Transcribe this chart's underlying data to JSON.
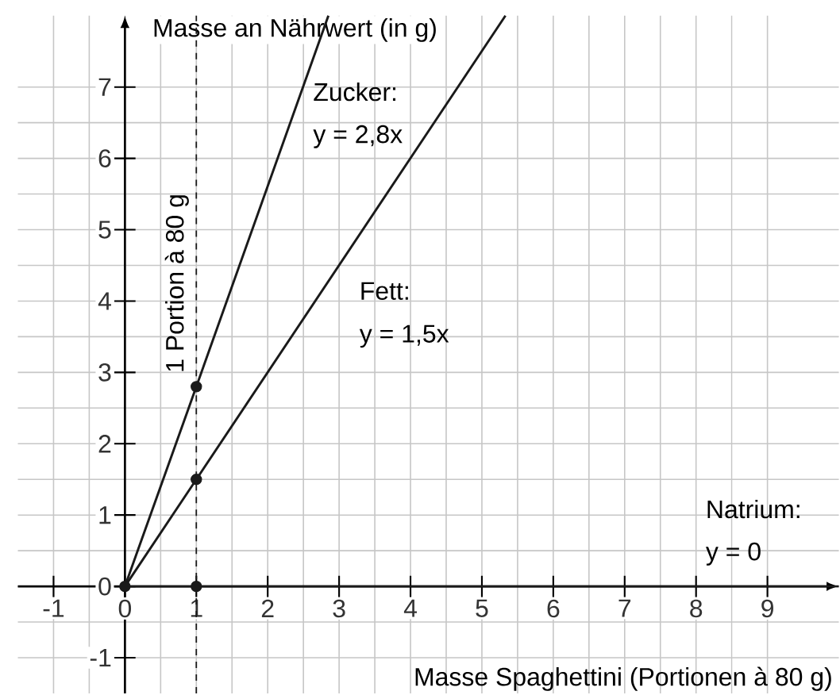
{
  "chart_data": {
    "type": "line",
    "xlabel": "Masse Spaghettini (Portionen à 80 g)",
    "ylabel": "Masse an Nährwert (in g)",
    "xlim": [
      -1.5,
      10
    ],
    "ylim": [
      -1.5,
      8
    ],
    "xticks": [
      -1,
      0,
      1,
      2,
      3,
      4,
      5,
      6,
      7,
      8,
      9
    ],
    "yticks": [
      -1,
      0,
      1,
      2,
      3,
      4,
      5,
      6,
      7
    ],
    "grid": true,
    "marker": "none",
    "line_style": "solid",
    "series": [
      {
        "name": "Zucker:",
        "color": "#1a1a1a",
        "x": [
          0,
          1,
          2.85
        ],
        "values": [
          0,
          2.8,
          8
        ]
      },
      {
        "name": "Fett:",
        "color": "#1a1a1a",
        "x": [
          0,
          1,
          5.33
        ],
        "values": [
          0,
          1.5,
          8
        ]
      },
      {
        "name": "Natrium:",
        "color": "#1a1a1a",
        "x": [
          0,
          10
        ],
        "values": [
          0,
          0
        ]
      },
      {
        "type": "scatter",
        "marker": "circle",
        "color": "#1a1a1a",
        "x": [
          0,
          1,
          1,
          1
        ],
        "values": [
          0,
          2.8,
          1.5,
          0
        ]
      }
    ],
    "annotations": [
      "y = 2,8x",
      "y = 1,5x",
      "y = 0"
    ],
    "ref_lines": [
      {
        "axis": "x",
        "value": 1,
        "label": "1 Portion à 80 g",
        "line_style": "dashed",
        "color": "#1a1a1a"
      }
    ]
  }
}
